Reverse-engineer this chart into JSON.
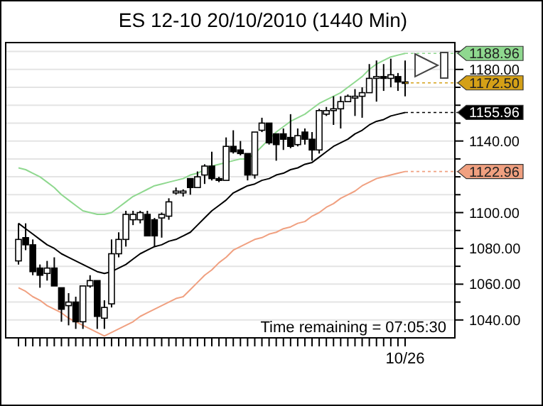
{
  "chart_data": {
    "type": "candlestick",
    "title": "ES 12-10  20/10/2010 (1440 Min)",
    "categories": [
      null,
      null,
      null,
      null,
      null,
      null,
      null,
      null,
      null,
      null,
      null,
      null,
      null,
      null,
      null,
      null,
      null,
      null,
      null,
      null,
      null,
      null,
      null,
      null,
      null,
      null,
      null,
      null,
      null,
      null,
      null,
      null,
      null,
      null,
      null,
      null,
      null,
      null,
      null,
      null,
      null,
      null,
      null,
      null,
      null,
      null,
      null,
      null,
      null,
      null,
      null,
      null,
      null,
      null,
      "10/26"
    ],
    "ohlc": [
      [
        1073,
        1094,
        1071,
        1085
      ],
      [
        1086,
        1094,
        1079,
        1082
      ],
      [
        1082,
        1085,
        1065,
        1067
      ],
      [
        1069,
        1071,
        1058,
        1065
      ],
      [
        1066,
        1073,
        1062,
        1069
      ],
      [
        1069,
        1075,
        1059,
        1059
      ],
      [
        1058,
        1058,
        1039,
        1046
      ],
      [
        1048,
        1055,
        1037,
        1050
      ],
      [
        1050,
        1053,
        1035,
        1039
      ],
      [
        1039,
        1059,
        1035,
        1059
      ],
      [
        1059,
        1065,
        1058,
        1062
      ],
      [
        1062,
        1062,
        1035,
        1042
      ],
      [
        1041,
        1051,
        1035,
        1047
      ],
      [
        1049,
        1085,
        1047,
        1077
      ],
      [
        1077,
        1089,
        1075,
        1085
      ],
      [
        1085,
        1101,
        1081,
        1099
      ],
      [
        1096,
        1101,
        1093,
        1099
      ],
      [
        1096,
        1101,
        1094,
        1100
      ],
      [
        1099,
        1101,
        1087,
        1087
      ],
      [
        1096,
        1097,
        1081,
        1087
      ],
      [
        1097,
        1100,
        1086,
        1099
      ],
      [
        1098,
        1108,
        1096,
        1106
      ],
      [
        1111,
        1114,
        1110,
        1112
      ],
      [
        1111,
        1113,
        1109,
        1112
      ],
      [
        1119,
        1119,
        1110,
        1114
      ],
      [
        1114,
        1123,
        1114,
        1120
      ],
      [
        1121,
        1127,
        1116,
        1126
      ],
      [
        1126,
        1134,
        1118,
        1119
      ],
      [
        1119,
        1120,
        1117,
        1118
      ],
      [
        1118,
        1142,
        1118,
        1137
      ],
      [
        1137,
        1146,
        1133,
        1134
      ],
      [
        1135,
        1140,
        1132,
        1133
      ],
      [
        1133,
        1133,
        1118,
        1121
      ],
      [
        1121,
        1145,
        1119,
        1145
      ],
      [
        1146,
        1153,
        1145,
        1150
      ],
      [
        1150,
        1150,
        1138,
        1139
      ],
      [
        1144,
        1144,
        1129,
        1138
      ],
      [
        1144,
        1147,
        1135,
        1141
      ],
      [
        1142,
        1155,
        1136,
        1137
      ],
      [
        1138,
        1147,
        1137,
        1143
      ],
      [
        1145,
        1147,
        1138,
        1141
      ],
      [
        1141,
        1145,
        1129,
        1135
      ],
      [
        1135,
        1158,
        1133,
        1157
      ],
      [
        1155,
        1159,
        1154,
        1157
      ],
      [
        1157,
        1165,
        1149,
        1158
      ],
      [
        1158,
        1165,
        1147,
        1162
      ],
      [
        1162,
        1166,
        1162,
        1165
      ],
      [
        1164,
        1169,
        1154,
        1165
      ],
      [
        1165,
        1170,
        1153,
        1167
      ],
      [
        1167,
        1183,
        1167,
        1175
      ],
      [
        1175,
        1185,
        1162,
        1176
      ],
      [
        1176,
        1183,
        1168,
        1175
      ],
      [
        1175,
        1186,
        1170,
        1177
      ],
      [
        1176,
        1178,
        1168,
        1173
      ],
      [
        1173,
        1185,
        1165,
        1172.5
      ]
    ],
    "series": [
      {
        "type": "line",
        "color": "#8fd88f",
        "values": [
          1125,
          1124,
          1122,
          1120,
          1117,
          1114,
          1110,
          1107,
          1104,
          1101,
          1100,
          1099,
          1099,
          1100,
          1103,
          1106,
          1109,
          1111,
          1113,
          1115,
          1116,
          1117,
          1118,
          1119,
          1121,
          1122,
          1124,
          1126,
          1127,
          1128,
          1129,
          1130,
          1130,
          1133,
          1137,
          1141,
          1145,
          1148,
          1151,
          1153,
          1155,
          1158,
          1161,
          1163,
          1165,
          1167,
          1170,
          1173,
          1176,
          1180,
          1183,
          1185,
          1187,
          1188,
          1188.96
        ],
        "value_labels": [
          null,
          null,
          null,
          null,
          null,
          null,
          null,
          null,
          null,
          null,
          null,
          null,
          null,
          null,
          null,
          null,
          null,
          null,
          null,
          null,
          null,
          null,
          null,
          null,
          null,
          null,
          null,
          null,
          null,
          null,
          null,
          null,
          null,
          null,
          null,
          null,
          null,
          null,
          null,
          null,
          null,
          null,
          null,
          null,
          null,
          null,
          null,
          null,
          null,
          null,
          null,
          null,
          null,
          null,
          "1188.96"
        ]
      },
      {
        "type": "line",
        "color": "#000000",
        "values": [
          1094,
          1091,
          1088,
          1085,
          1082,
          1080,
          1077,
          1075,
          1073,
          1071,
          1069,
          1067,
          1066,
          1067,
          1069,
          1071,
          1074,
          1077,
          1079,
          1081,
          1082,
          1084,
          1085,
          1087,
          1089,
          1093,
          1097,
          1101,
          1104,
          1107,
          1111,
          1113,
          1115,
          1116,
          1118,
          1119,
          1121,
          1122,
          1124,
          1125,
          1127,
          1128,
          1131,
          1134,
          1137,
          1139,
          1141,
          1144,
          1146,
          1149,
          1151,
          1152,
          1154,
          1155,
          1155.96
        ],
        "value_labels": [
          null,
          null,
          null,
          null,
          null,
          null,
          null,
          null,
          null,
          null,
          null,
          null,
          null,
          null,
          null,
          null,
          null,
          null,
          null,
          null,
          null,
          null,
          null,
          null,
          null,
          null,
          null,
          null,
          null,
          null,
          null,
          null,
          null,
          null,
          null,
          null,
          null,
          null,
          null,
          null,
          null,
          null,
          null,
          null,
          null,
          null,
          null,
          null,
          null,
          null,
          null,
          null,
          null,
          null,
          "1155.96"
        ]
      },
      {
        "type": "line",
        "color": "#f0a080",
        "values": [
          1058,
          1056,
          1053,
          1051,
          1048,
          1046,
          1044,
          1041,
          1039,
          1037,
          1035,
          1033,
          1031,
          1033,
          1035,
          1037,
          1039,
          1042,
          1044,
          1046,
          1048,
          1050,
          1052,
          1053,
          1057,
          1061,
          1065,
          1068,
          1072,
          1075,
          1079,
          1081,
          1083,
          1085,
          1086,
          1088,
          1089,
          1091,
          1092,
          1094,
          1095,
          1098,
          1100,
          1103,
          1105,
          1108,
          1110,
          1112,
          1115,
          1117,
          1119,
          1120,
          1121,
          1122,
          1122.96
        ],
        "value_labels": [
          null,
          null,
          null,
          null,
          null,
          null,
          null,
          null,
          null,
          null,
          null,
          null,
          null,
          null,
          null,
          null,
          null,
          null,
          null,
          null,
          null,
          null,
          null,
          null,
          null,
          null,
          null,
          null,
          null,
          null,
          null,
          null,
          null,
          null,
          null,
          null,
          null,
          null,
          null,
          null,
          null,
          null,
          null,
          null,
          null,
          null,
          null,
          null,
          null,
          null,
          null,
          null,
          null,
          null,
          "1122.96"
        ]
      }
    ],
    "ylim": [
      1030,
      1195
    ],
    "yticks": [
      {
        "value": 1040,
        "label": "1040.00"
      },
      {
        "value": 1050,
        "label": null
      },
      {
        "value": 1060,
        "label": "1060.00"
      },
      {
        "value": 1070,
        "label": null
      },
      {
        "value": 1080,
        "label": "1080.00"
      },
      {
        "value": 1090,
        "label": null
      },
      {
        "value": 1100,
        "label": "1100.00"
      },
      {
        "value": 1110,
        "label": null
      },
      {
        "value": 1120,
        "label": null
      },
      {
        "value": 1130,
        "label": null
      },
      {
        "value": 1140,
        "label": "1140.00"
      },
      {
        "value": 1150,
        "label": null
      },
      {
        "value": 1160,
        "label": null
      },
      {
        "value": 1170,
        "label": null
      },
      {
        "value": 1180,
        "label": "1180.00"
      },
      {
        "value": 1190,
        "label": null
      }
    ],
    "grid": "y",
    "annotations": [
      {
        "text": "1172.50",
        "x": "10/26",
        "y": 1172.5
      },
      "Time remaining = 07:05:30"
    ]
  }
}
